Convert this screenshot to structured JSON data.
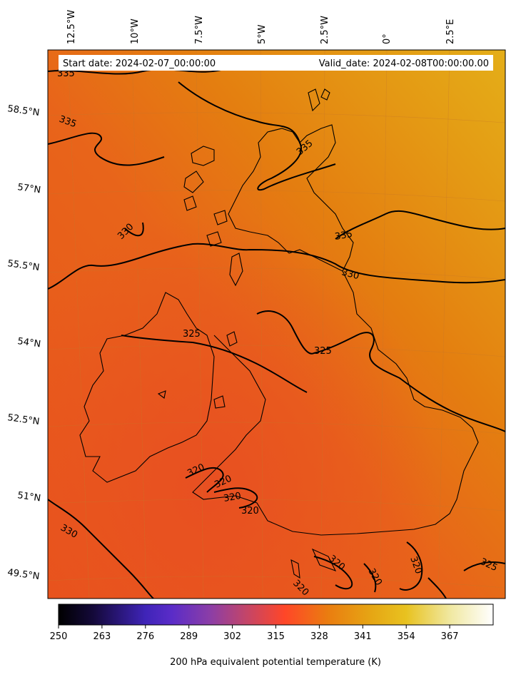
{
  "map": {
    "start_label": "Start date: 2024-02-07_00:00:00",
    "valid_label": "Valid_date: 2024-02-08T00:00:00.00",
    "lon_labels": [
      "12.5°W",
      "10°W",
      "7.5°W",
      "5°W",
      "2.5°W",
      "0°",
      "2.5°E"
    ],
    "lat_labels": [
      "58.5°N",
      "57°N",
      "55.5°N",
      "54°N",
      "52.5°N",
      "51°N",
      "49.5°N"
    ],
    "contour_labels": [
      "335",
      "335",
      "335",
      "335",
      "330",
      "330",
      "330",
      "325",
      "325",
      "325",
      "320",
      "320",
      "320",
      "320",
      "320",
      "320",
      "320",
      "320"
    ],
    "colors": {
      "low": "#e8501e",
      "mid": "#e47c12",
      "high": "#e3aa18",
      "contour": "#000000"
    }
  },
  "colorbar": {
    "title": "200 hPa equivalent potential temperature (K)",
    "ticks": [
      "250",
      "263",
      "276",
      "289",
      "302",
      "315",
      "328",
      "341",
      "354",
      "367"
    ],
    "stops": [
      "#000000",
      "#1b0b3c",
      "#4a22c6",
      "#7a3bb8",
      "#b24a7e",
      "#ff4428",
      "#ea8a10",
      "#e8b818",
      "#ece070",
      "#ffffff"
    ]
  }
}
